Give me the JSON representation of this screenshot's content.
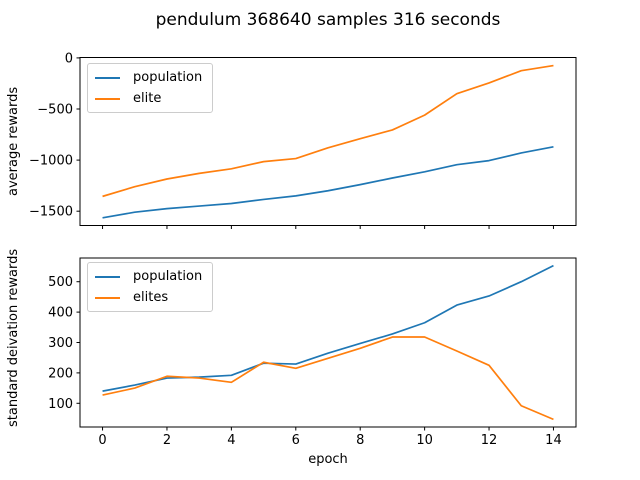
{
  "title": "pendulum 368640 samples 316 seconds",
  "xlabel": "epoch",
  "colors": {
    "population": "#1f77b4",
    "elite": "#ff7f0e",
    "axis": "#000000",
    "legend_border": "#cccccc"
  },
  "chart_data": [
    {
      "type": "line",
      "ylabel": "average rewards",
      "x": [
        0,
        1,
        2,
        3,
        4,
        5,
        6,
        7,
        8,
        9,
        10,
        11,
        12,
        13,
        14
      ],
      "xticks": [
        0,
        2,
        4,
        6,
        8,
        10,
        12,
        14
      ],
      "yticks": [
        0,
        -500,
        -1000,
        -1500
      ],
      "xlim": [
        -0.7,
        14.7
      ],
      "ylim": [
        -1640,
        4
      ],
      "grid": false,
      "show_xtick_labels": false,
      "legend_loc": "upper left",
      "series": [
        {
          "name": "population",
          "color": "#1f77b4",
          "values": [
            -1565,
            -1510,
            -1475,
            -1450,
            -1425,
            -1385,
            -1350,
            -1300,
            -1240,
            -1175,
            -1115,
            -1045,
            -1005,
            -930,
            -870
          ]
        },
        {
          "name": "elite",
          "color": "#ff7f0e",
          "values": [
            -1355,
            -1260,
            -1185,
            -1130,
            -1085,
            -1015,
            -985,
            -880,
            -790,
            -705,
            -560,
            -350,
            -245,
            -125,
            -75
          ]
        }
      ]
    },
    {
      "type": "line",
      "ylabel": "standard deivation rewards",
      "x": [
        0,
        1,
        2,
        3,
        4,
        5,
        6,
        7,
        8,
        9,
        10,
        11,
        12,
        13,
        14
      ],
      "xticks": [
        0,
        2,
        4,
        6,
        8,
        10,
        12,
        14
      ],
      "yticks": [
        100,
        200,
        300,
        400,
        500
      ],
      "xlim": [
        -0.7,
        14.7
      ],
      "ylim": [
        22,
        578
      ],
      "grid": false,
      "show_xtick_labels": true,
      "legend_loc": "upper left",
      "series": [
        {
          "name": "population",
          "color": "#1f77b4",
          "values": [
            140,
            160,
            183,
            186,
            192,
            232,
            229,
            265,
            297,
            328,
            365,
            423,
            453,
            500,
            553
          ]
        },
        {
          "name": "elites",
          "color": "#ff7f0e",
          "values": [
            127,
            150,
            189,
            183,
            169,
            235,
            215,
            248,
            281,
            318,
            318,
            272,
            225,
            92,
            47
          ]
        }
      ]
    }
  ]
}
